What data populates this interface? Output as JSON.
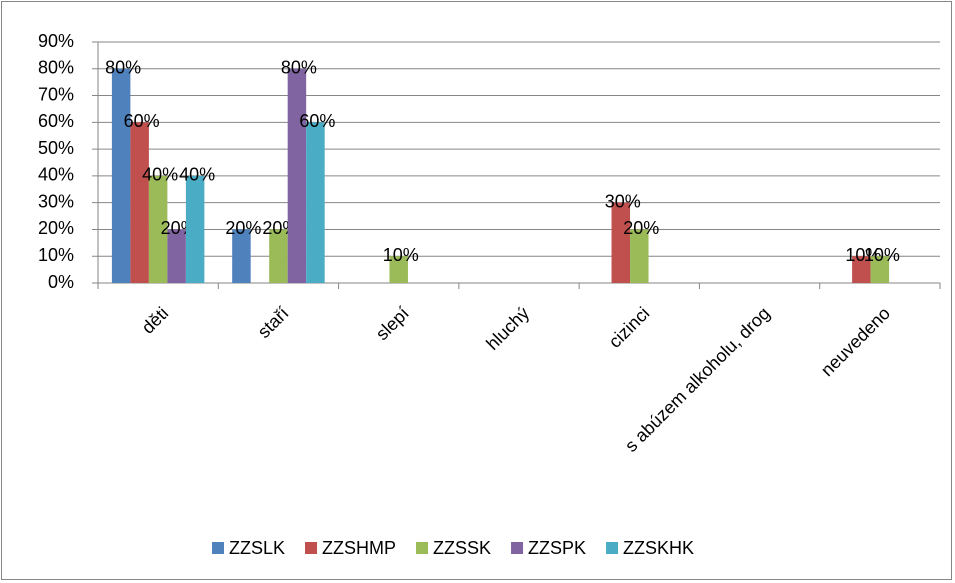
{
  "chart_data": {
    "type": "bar",
    "categories": [
      "děti",
      "staří",
      "slepí",
      "hluchý",
      "cizinci",
      "s abúzem alkoholu, drog",
      "neuvedeno"
    ],
    "series": [
      {
        "name": "ZZSLK",
        "color": "#4f81bd",
        "values": [
          80,
          20,
          0,
          0,
          0,
          0,
          0
        ],
        "value_labels": [
          "80%",
          "20%",
          null,
          null,
          null,
          null,
          null
        ]
      },
      {
        "name": "ZZSHMP",
        "color": "#c0504d",
        "values": [
          60,
          0,
          0,
          0,
          30,
          0,
          10
        ],
        "value_labels": [
          "60%",
          null,
          null,
          null,
          "30%",
          null,
          "10%"
        ]
      },
      {
        "name": "ZZSSK",
        "color": "#9bbb59",
        "values": [
          40,
          20,
          10,
          0,
          20,
          0,
          10
        ],
        "value_labels": [
          "40%",
          "20%",
          "10%",
          null,
          "20%",
          null,
          "10%"
        ]
      },
      {
        "name": "ZZSPK",
        "color": "#8064a2",
        "values": [
          20,
          80,
          0,
          0,
          0,
          0,
          0
        ],
        "value_labels": [
          "20%",
          "80%",
          null,
          null,
          null,
          null,
          null
        ]
      },
      {
        "name": "ZZSKHK",
        "color": "#4bacc6",
        "values": [
          40,
          60,
          0,
          0,
          0,
          0,
          0
        ],
        "value_labels": [
          "40%",
          "60%",
          null,
          null,
          null,
          null,
          null
        ]
      }
    ],
    "ylim": [
      0,
      90
    ],
    "yticks": [
      {
        "value": 0,
        "label": "0%"
      },
      {
        "value": 10,
        "label": "10%"
      },
      {
        "value": 20,
        "label": "20%"
      },
      {
        "value": 30,
        "label": "30%"
      },
      {
        "value": 40,
        "label": "40%"
      },
      {
        "value": 50,
        "label": "50%"
      },
      {
        "value": 60,
        "label": "60%"
      },
      {
        "value": 70,
        "label": "70%"
      },
      {
        "value": 80,
        "label": "80%"
      },
      {
        "value": 90,
        "label": "90%"
      }
    ],
    "grid": true,
    "legend": "bottom"
  }
}
